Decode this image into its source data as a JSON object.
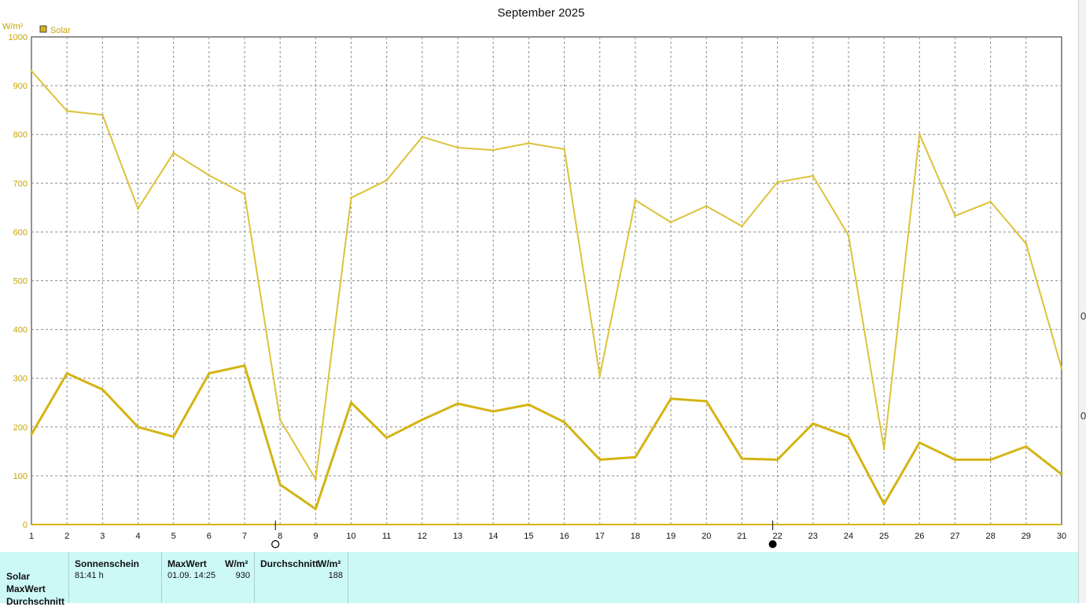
{
  "chart_data": {
    "type": "line",
    "title": "September 2025",
    "y_unit": "W/m²",
    "ylim": [
      0,
      1000
    ],
    "y_ticks": [
      0,
      100,
      200,
      300,
      400,
      500,
      600,
      700,
      800,
      900,
      1000
    ],
    "x": [
      1,
      2,
      3,
      4,
      5,
      6,
      7,
      8,
      9,
      10,
      11,
      12,
      13,
      14,
      15,
      16,
      17,
      18,
      19,
      20,
      21,
      22,
      23,
      24,
      25,
      26,
      27,
      28,
      29,
      30
    ],
    "grid": true,
    "legend": {
      "entries": [
        "Solar"
      ],
      "placement": "top-left",
      "color": "#d4b414"
    },
    "series": [
      {
        "name": "Solar",
        "kind": "max",
        "color": "#dcc23a",
        "width": 2,
        "values": [
          930,
          848,
          840,
          648,
          762,
          716,
          678,
          215,
          93,
          670,
          706,
          795,
          773,
          768,
          782,
          770,
          305,
          665,
          620,
          653,
          612,
          702,
          715,
          593,
          155,
          800,
          633,
          662,
          576,
          320
        ]
      },
      {
        "name": "Solar",
        "kind": "average",
        "color": "#d4b414",
        "width": 3,
        "values": [
          185,
          310,
          277,
          200,
          180,
          310,
          326,
          82,
          32,
          250,
          178,
          215,
          248,
          232,
          246,
          210,
          133,
          138,
          258,
          253,
          135,
          133,
          207,
          180,
          42,
          168,
          133,
          133,
          160,
          103
        ]
      }
    ],
    "moon_phases": [
      {
        "day": 8,
        "phase": "full-moon"
      },
      {
        "day": 22,
        "phase": "new-moon"
      }
    ]
  },
  "stats": {
    "sunshine": {
      "header": "Sonnenschein",
      "value": "81:41 h"
    },
    "max": {
      "header": "MaxWert",
      "unit": "W/m²",
      "datetime": "01.09.  14:25",
      "value": "930"
    },
    "avg": {
      "header": "Durchschnitt",
      "unit": "W/m²",
      "value": "188"
    },
    "rows": [
      "Solar",
      "MaxWert",
      "Durchschnitt"
    ]
  },
  "right_strip_chars": [
    "0",
    "0"
  ]
}
